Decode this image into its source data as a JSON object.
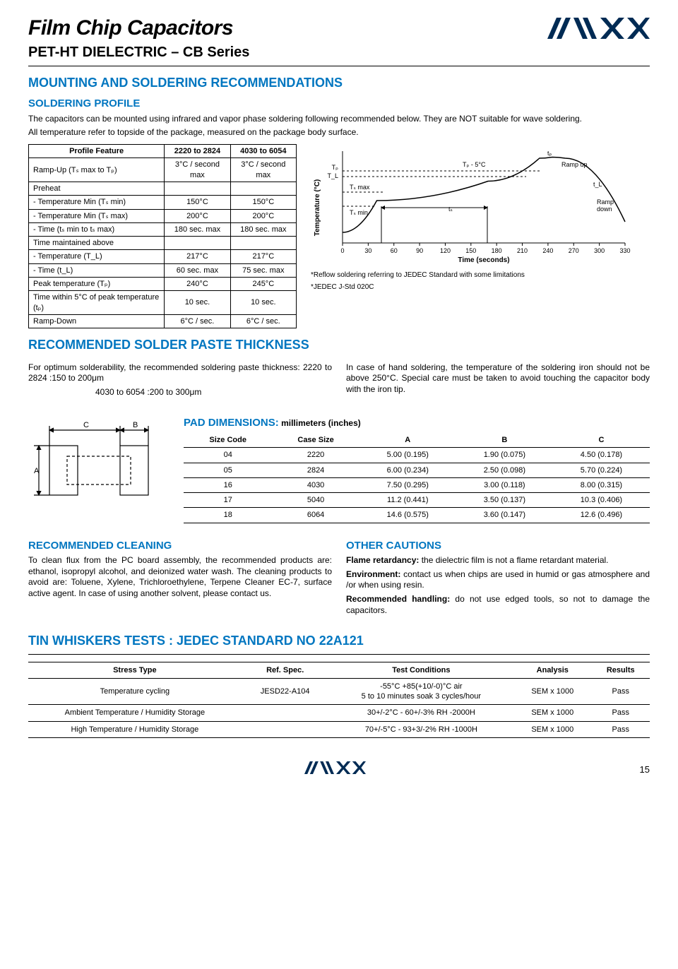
{
  "header": {
    "title": "Film Chip Capacitors",
    "subtitle": "PET-HT DIELECTRIC – CB Series",
    "logo_text": "AVX"
  },
  "sections": {
    "mounting_title": "MOUNTING AND SOLDERING RECOMMENDATIONS",
    "soldering_title": "SOLDERING PROFILE",
    "soldering_body": "The capacitors can be mounted using infrared and vapor phase soldering following recommended below. They are NOT suitable for wave soldering.",
    "soldering_body2": "All temperature refer to topside of the package, measured on the package body surface.",
    "profile_table": {
      "headers": [
        "Profile Feature",
        "2220 to 2824",
        "4030 to 6054"
      ],
      "rows": [
        [
          "Ramp-Up (Tₛ max to Tₚ)",
          "3°C / second max",
          "3°C / second max"
        ],
        [
          "Preheat",
          "",
          ""
        ],
        [
          "- Temperature Min (Tₛ min)",
          "150°C",
          "150°C"
        ],
        [
          "- Temperature Min (Tₛ max)",
          "200°C",
          "200°C"
        ],
        [
          "- Time (tₛ min to tₛ max)",
          "180 sec. max",
          "180 sec. max"
        ],
        [
          "Time maintained above",
          "",
          ""
        ],
        [
          "- Temperature (T_L)",
          "217°C",
          "217°C"
        ],
        [
          "- Time (t_L)",
          "60 sec. max",
          "75 sec. max"
        ],
        [
          "Peak temperature (Tₚ)",
          "240°C",
          "245°C"
        ],
        [
          "Time within 5°C of peak temperature (tₚ)",
          "10 sec.",
          "10 sec."
        ],
        [
          "Ramp-Down",
          "6°C / sec.",
          "6°C / sec."
        ]
      ]
    },
    "chart": {
      "xlabel": "Time (seconds)",
      "ylabel": "Temperature (°C)",
      "xticks": [
        "0",
        "30",
        "60",
        "90",
        "120",
        "150",
        "180",
        "210",
        "240",
        "270",
        "300",
        "330"
      ],
      "annotations": [
        "Tₚ",
        "T_L",
        "Tₛ max",
        "Tₛ min",
        "Tₚ - 5°C",
        "Ramp up",
        "t_L",
        "tₚ",
        "Ramp down",
        "tₛ"
      ],
      "note1": "*Reflow soldering referring to JEDEC Standard with some limitations",
      "note2": "*JEDEC J-Std 020C",
      "line_color": "#000000",
      "curve": [
        [
          0,
          30
        ],
        [
          40,
          120
        ],
        [
          170,
          175
        ],
        [
          230,
          240
        ],
        [
          245,
          243
        ],
        [
          260,
          240
        ],
        [
          330,
          60
        ]
      ]
    },
    "paste_title": "RECOMMENDED SOLDER PASTE THICKNESS",
    "paste_left1": "For optimum solderability, the recommended soldering paste thickness: 2220 to 2824 :150 to 200μm",
    "paste_left2": "4030 to 6054 :200 to 300μm",
    "paste_right": "In case of hand soldering, the temperature of the soldering iron should not be above 250°C. Special care must be taken to avoid touching the capacitor body with the iron tip.",
    "pad_title": "PAD DIMENSIONS:",
    "pad_title_sub": " millimeters (inches)",
    "pad_labels": [
      "A",
      "B",
      "C"
    ],
    "pad_table": {
      "headers": [
        "Size Code",
        "Case Size",
        "A",
        "B",
        "C"
      ],
      "rows": [
        [
          "04",
          "2220",
          "5.00 (0.195)",
          "1.90 (0.075)",
          "4.50 (0.178)"
        ],
        [
          "05",
          "2824",
          "6.00 (0.234)",
          "2.50 (0.098)",
          "5.70 (0.224)"
        ],
        [
          "16",
          "4030",
          "7.50 (0.295)",
          "3.00 (0.118)",
          "8.00 (0.315)"
        ],
        [
          "17",
          "5040",
          "11.2 (0.441)",
          "3.50 (0.137)",
          "10.3 (0.406)"
        ],
        [
          "18",
          "6064",
          "14.6 (0.575)",
          "3.60 (0.147)",
          "12.6 (0.496)"
        ]
      ]
    },
    "cleaning_title": "RECOMMENDED CLEANING",
    "cleaning_body": "To clean flux from the PC board assembly, the recommended products are: ethanol, isopropyl alcohol, and deionized water wash. The cleaning products to avoid are: Toluene, Xylene, Trichloroethylene, Terpene Cleaner EC-7, surface active agent. In case of using another solvent, please contact us.",
    "cautions_title": "OTHER CAUTIONS",
    "caution_fr_label": "Flame retardancy:",
    "caution_fr": " the dielectric film is not a flame retardant material.",
    "caution_env_label": "Environment:",
    "caution_env": " contact us when chips are used in humid or gas atmosphere and /or when using resin.",
    "caution_hand_label": "Recommended handling:",
    "caution_hand": " do not use edged tools, so not to damage the capacitors.",
    "whisker_title": "TIN WHISKERS TESTS : JEDEC STANDARD NO 22A121",
    "whisker_table": {
      "headers": [
        "Stress Type",
        "Ref. Spec.",
        "Test Conditions",
        "Analysis",
        "Results"
      ],
      "rows": [
        [
          "Temperature cycling",
          "JESD22-A104",
          "-55°C +85(+10/-0)°C air\n5 to 10 minutes soak 3 cycles/hour",
          "SEM x 1000",
          "Pass"
        ],
        [
          "Ambient Temperature / Humidity Storage",
          "",
          "30+/-2°C - 60+/-3% RH -2000H",
          "SEM x 1000",
          "Pass"
        ],
        [
          "High Temperature / Humidity Storage",
          "",
          "70+/-5°C - 93+3/-2% RH -1000H",
          "SEM x 1000",
          "Pass"
        ]
      ]
    }
  },
  "footer": {
    "page": "15"
  },
  "colors": {
    "blue": "#0076c0",
    "black": "#000000"
  }
}
